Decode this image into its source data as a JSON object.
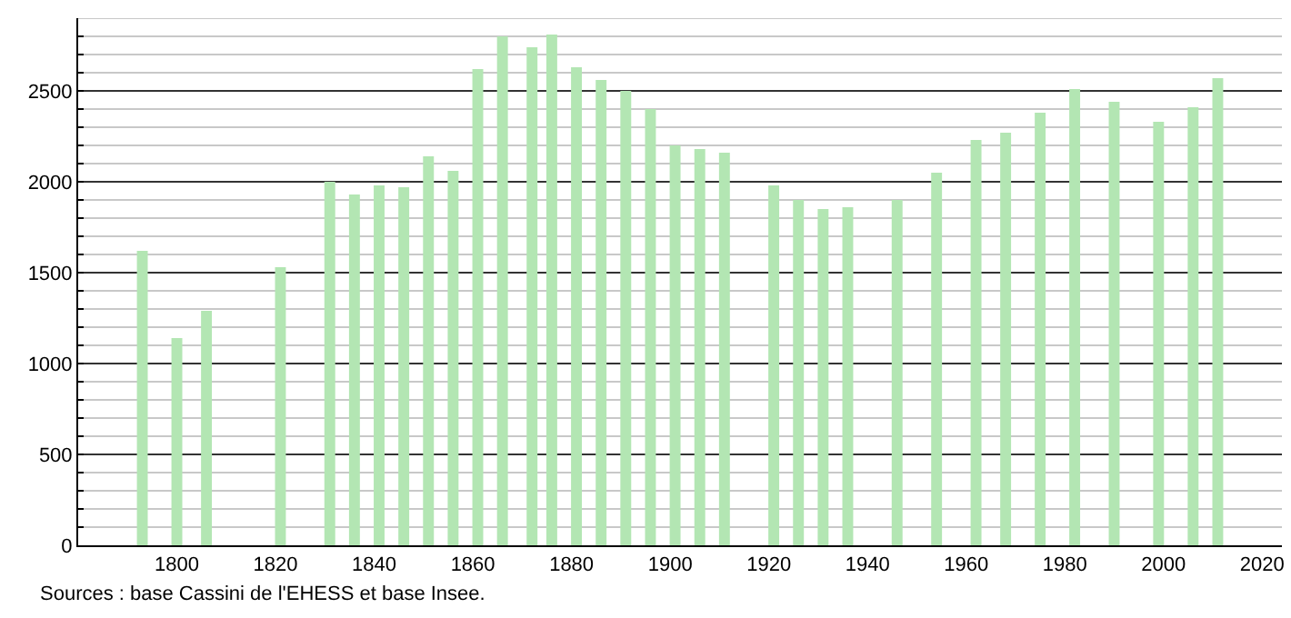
{
  "chart_data": {
    "type": "bar",
    "x": [
      1793,
      1800,
      1806,
      1821,
      1831,
      1836,
      1841,
      1846,
      1851,
      1856,
      1861,
      1866,
      1872,
      1876,
      1881,
      1886,
      1891,
      1896,
      1901,
      1906,
      1911,
      1921,
      1926,
      1931,
      1936,
      1946,
      1954,
      1962,
      1968,
      1975,
      1982,
      1990,
      1999,
      2006,
      2011
    ],
    "values": [
      1620,
      1140,
      1290,
      1530,
      2000,
      1930,
      1980,
      1970,
      2140,
      2060,
      2620,
      2800,
      2740,
      2810,
      2630,
      2560,
      2500,
      2400,
      2200,
      2180,
      2160,
      1980,
      1900,
      1850,
      1860,
      1900,
      2050,
      2230,
      2270,
      2380,
      2510,
      2440,
      2330,
      2410,
      2570
    ],
    "color": "#b3e6b3",
    "xlim": [
      1780,
      2024
    ],
    "xticks": [
      1800,
      1820,
      1840,
      1860,
      1880,
      1900,
      1920,
      1940,
      1960,
      1980,
      2000,
      2020
    ],
    "ylim": [
      0,
      2900
    ],
    "yticks": [
      0,
      {
        "value": 100,
        "label": null
      },
      {
        "value": 200,
        "label": null
      },
      {
        "value": 300,
        "label": null
      },
      {
        "value": 400,
        "label": null
      },
      500,
      {
        "value": 600,
        "label": null
      },
      {
        "value": 700,
        "label": null
      },
      {
        "value": 800,
        "label": null
      },
      {
        "value": 900,
        "label": null
      },
      1000,
      {
        "value": 1100,
        "label": null
      },
      {
        "value": 1200,
        "label": null
      },
      {
        "value": 1300,
        "label": null
      },
      {
        "value": 1400,
        "label": null
      },
      1500,
      {
        "value": 1600,
        "label": null
      },
      {
        "value": 1700,
        "label": null
      },
      {
        "value": 1800,
        "label": null
      },
      {
        "value": 1900,
        "label": null
      },
      2000,
      {
        "value": 2100,
        "label": null
      },
      {
        "value": 2200,
        "label": null
      },
      {
        "value": 2300,
        "label": null
      },
      {
        "value": 2400,
        "label": null
      },
      2500,
      {
        "value": 2600,
        "label": null
      },
      {
        "value": 2700,
        "label": null
      },
      {
        "value": 2800,
        "label": null
      },
      {
        "value": 2900,
        "label": null
      }
    ],
    "grid": "y",
    "annotations": [
      "Sources : base Cassini de l'EHESS et base Insee."
    ]
  }
}
